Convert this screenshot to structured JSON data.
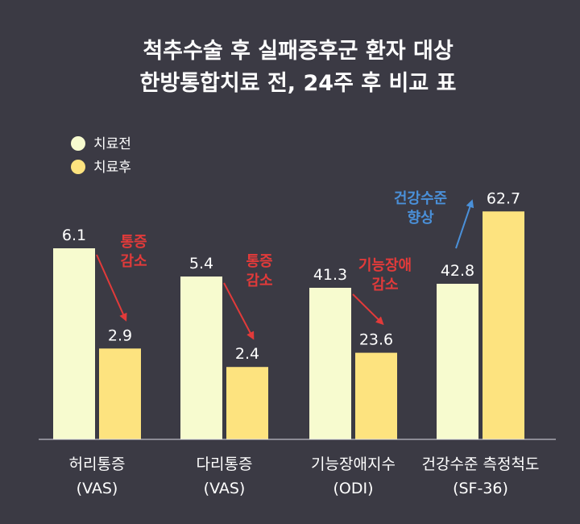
{
  "title": {
    "line1": "척추수술 후 실패증후군 환자 대상",
    "line2": "한방통합치료 전, 24주 후 비교 표"
  },
  "legend": [
    {
      "label": "치료전",
      "color": "#f7fbcf"
    },
    {
      "label": "치료후",
      "color": "#fde37f"
    }
  ],
  "chart_data": {
    "type": "bar",
    "groups": [
      {
        "label_line1": "허리통증",
        "label_line2": "(VAS)",
        "before": 6.1,
        "after": 2.9,
        "annotation": {
          "line1": "통증",
          "line2": "감소",
          "color": "#e23a3a",
          "direction": "down"
        }
      },
      {
        "label_line1": "다리통증",
        "label_line2": "(VAS)",
        "before": 5.4,
        "after": 2.4,
        "annotation": {
          "line1": "통증",
          "line2": "감소",
          "color": "#e23a3a",
          "direction": "down"
        }
      },
      {
        "label_line1": "기능장애지수",
        "label_line2": "(ODI)",
        "before": 41.3,
        "after": 23.6,
        "annotation": {
          "line1": "기능장애",
          "line2": "감소",
          "color": "#e23a3a",
          "direction": "down"
        }
      },
      {
        "label_line1": "건강수준 측정척도",
        "label_line2": "(SF-36)",
        "before": 42.8,
        "after": 62.7,
        "annotation": {
          "line1": "건강수준",
          "line2": "향상",
          "color": "#4a90d9",
          "direction": "up"
        }
      }
    ],
    "series": [
      {
        "name": "치료전",
        "color": "#f7fbcf"
      },
      {
        "name": "치료후",
        "color": "#fde37f"
      }
    ],
    "value_labels": [
      [
        "6.1",
        "2.9"
      ],
      [
        "5.4",
        "2.4"
      ],
      [
        "41.3",
        "23.6"
      ],
      [
        "42.8",
        "62.7"
      ]
    ]
  }
}
